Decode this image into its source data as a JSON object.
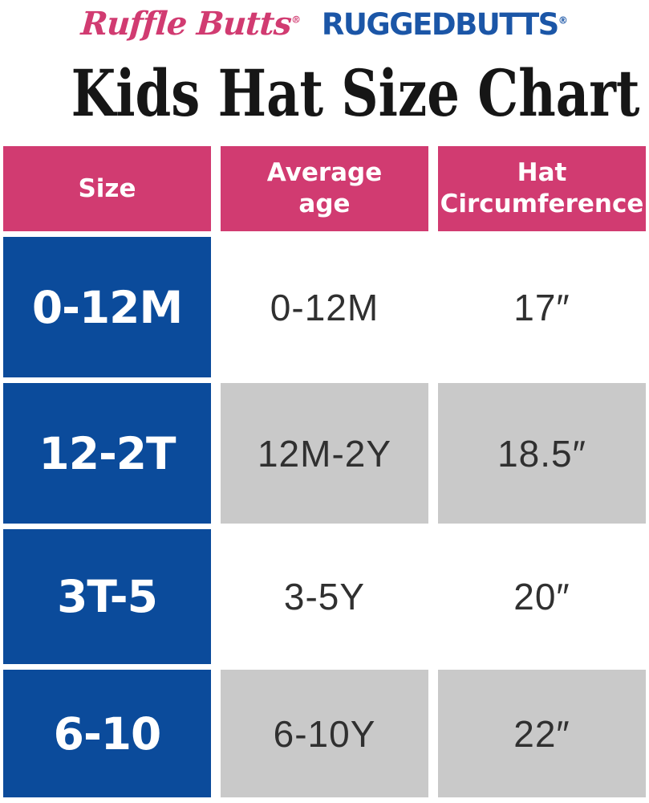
{
  "brand": {
    "rufflebutts_label": "Ruffle Butts",
    "rufflebutts_reg": "®",
    "ruggedbutts_label": "RUGGEDBUTTS",
    "ruggedbutts_reg": "®"
  },
  "title": "Kids Hat Size Chart",
  "chart_data": {
    "type": "table",
    "title": "Kids Hat Size Chart",
    "columns": [
      "Size",
      "Average age",
      "Hat Circumference"
    ],
    "rows": [
      [
        "0-12M",
        "0-12M",
        "17″"
      ],
      [
        "12-2T",
        "12M-2Y",
        "18.5″"
      ],
      [
        "3T-5",
        "3-5Y",
        "20″"
      ],
      [
        "6-10",
        "6-10Y",
        "22″"
      ]
    ],
    "layout_hints": {
      "header_background": "#d13b71",
      "size_column_background": "#0b4b9b",
      "alternating_row_backgrounds": [
        "#ffffff",
        "#c9c9c9"
      ],
      "grid": "white gaps between cells"
    }
  },
  "colors": {
    "header-pink": "#d13b71",
    "row-blue": "#0b4b9b",
    "row-gray": "#c9c9c9",
    "logo-pink": "#d13b71",
    "logo-blue": "#1b56a7",
    "text-dark": "#303030"
  }
}
